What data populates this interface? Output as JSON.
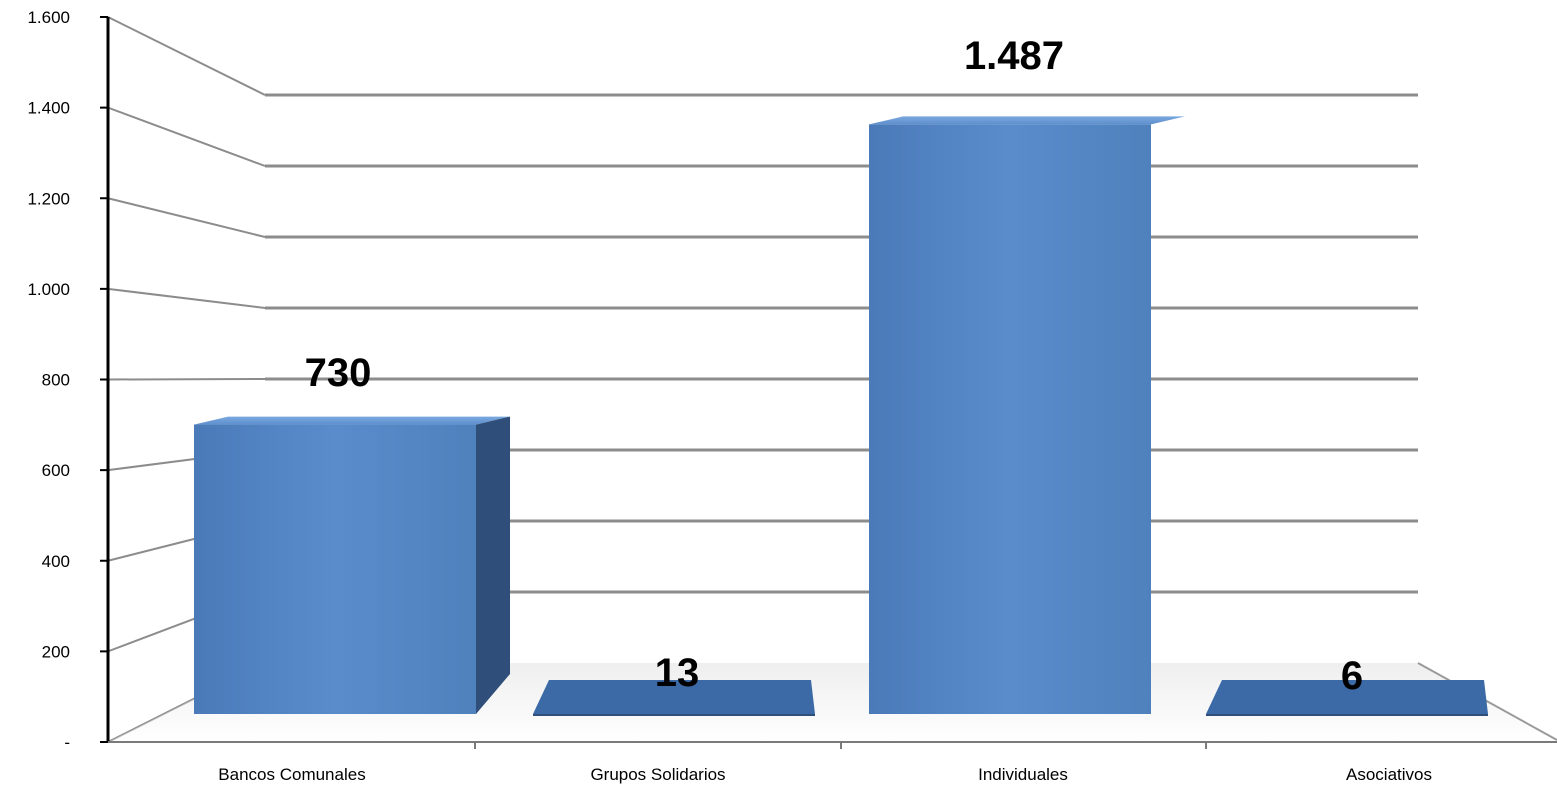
{
  "chart_data": {
    "type": "bar",
    "categories": [
      "Bancos Comunales",
      "Grupos Solidarios",
      "Individuales",
      "Asociativos"
    ],
    "values": [
      730,
      13,
      1487,
      6
    ],
    "data_labels": [
      "730",
      "13",
      "1.487",
      "6"
    ],
    "y_ticks": [
      "-",
      "200",
      "400",
      "600",
      "800",
      "1.000",
      "1.200",
      "1.400",
      "1.600"
    ],
    "y_tick_values": [
      0,
      200,
      400,
      600,
      800,
      1000,
      1200,
      1400,
      1600
    ],
    "ylim": [
      0,
      1600
    ],
    "title": "",
    "xlabel": "",
    "ylabel": "",
    "grid": true,
    "style": "3d-perspective",
    "colors": {
      "bar_front": "#4f81bd",
      "bar_side": "#2f4f7a",
      "bar_top": "#6a9bd8",
      "grid": "#8c8c8c",
      "axis": "#000000"
    }
  }
}
